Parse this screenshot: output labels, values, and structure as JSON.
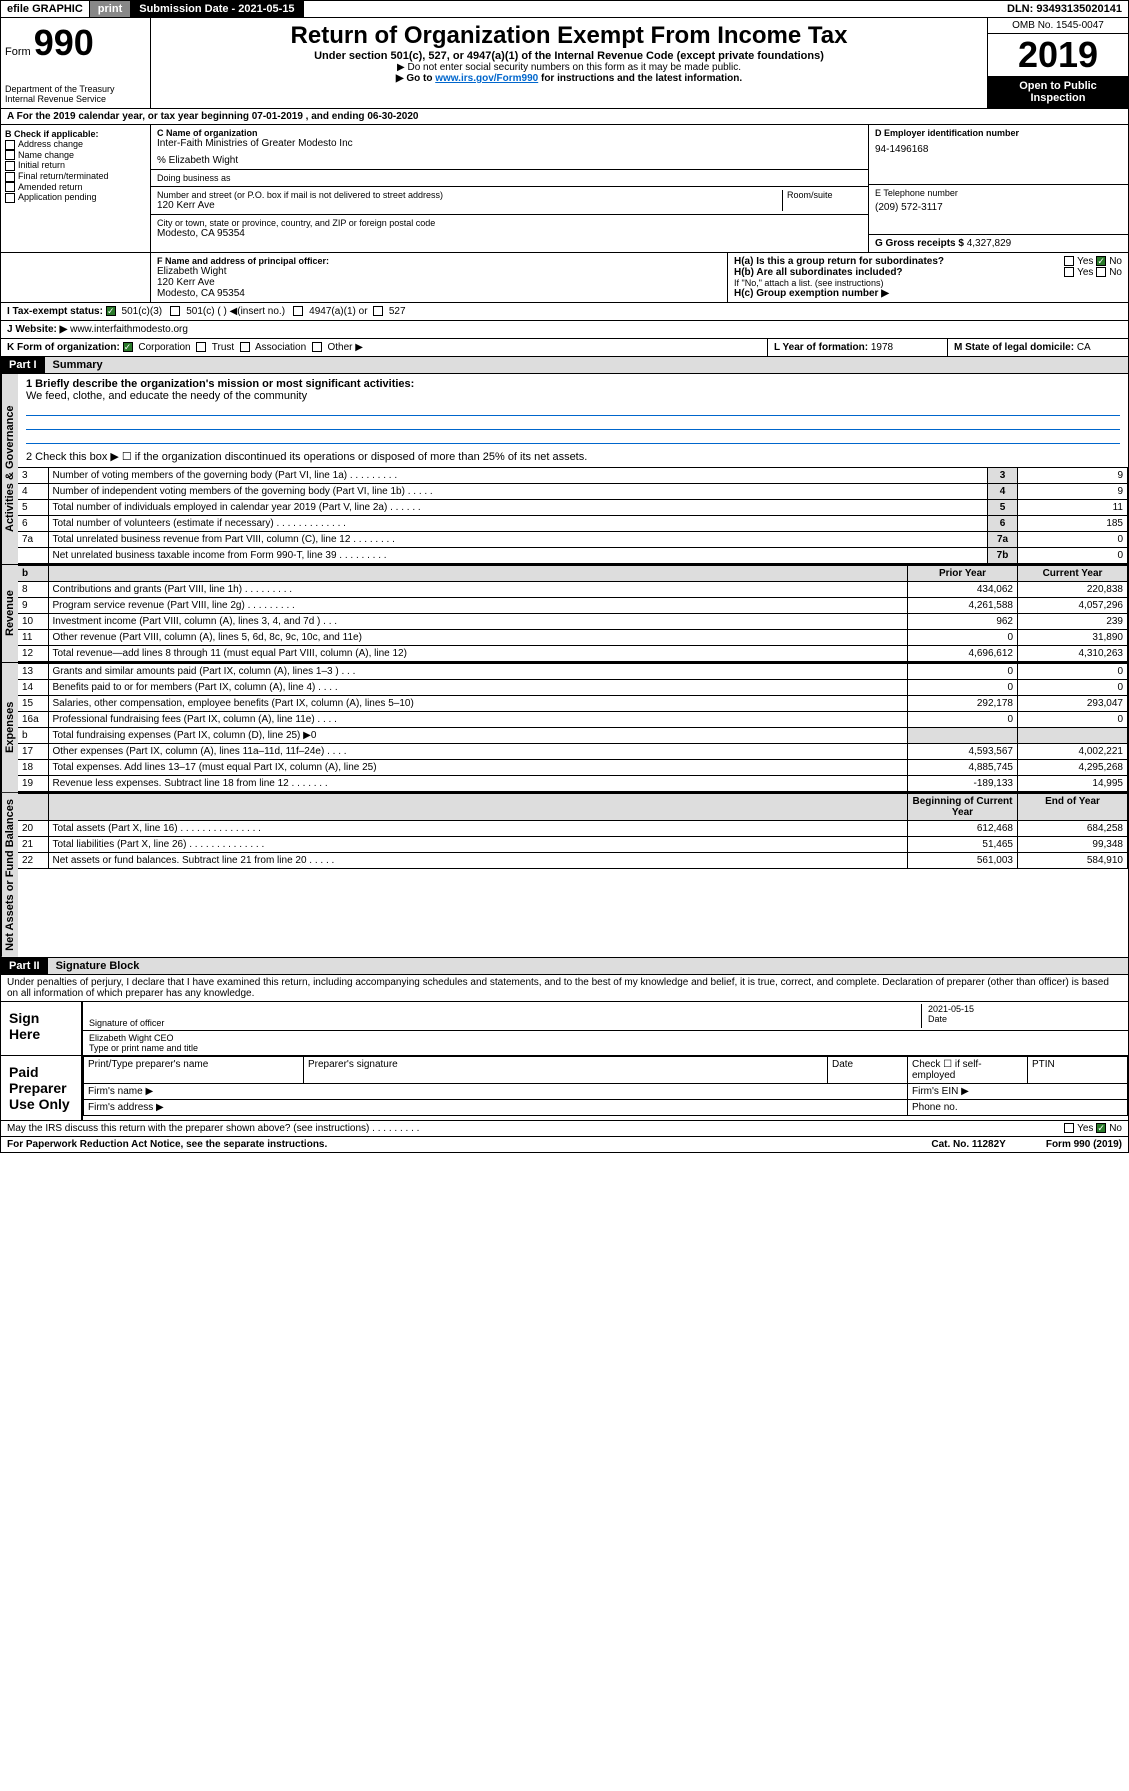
{
  "topbar": {
    "efile": "efile GRAPHIC",
    "print": "print",
    "subdate_label": "Submission Date - ",
    "subdate": "2021-05-15",
    "dln_label": "DLN: ",
    "dln": "93493135020141"
  },
  "header": {
    "form_word": "Form",
    "form_num": "990",
    "dept1": "Department of the Treasury",
    "dept2": "Internal Revenue Service",
    "title": "Return of Organization Exempt From Income Tax",
    "sub1": "Under section 501(c), 527, or 4947(a)(1) of the Internal Revenue Code (except private foundations)",
    "sub2": "▶ Do not enter social security numbers on this form as it may be made public.",
    "sub3a": "▶ Go to ",
    "sub3_link": "www.irs.gov/Form990",
    "sub3b": " for instructions and the latest information.",
    "omb": "OMB No. 1545-0047",
    "year": "2019",
    "open": "Open to Public Inspection"
  },
  "rowA": "A For the 2019 calendar year, or tax year beginning 07-01-2019    , and ending 06-30-2020",
  "boxB": {
    "label": "B Check if applicable:",
    "items": [
      "Address change",
      "Name change",
      "Initial return",
      "Final return/terminated",
      "Amended return",
      "Application pending"
    ]
  },
  "boxC": {
    "label": "C Name of organization",
    "org": "Inter-Faith Ministries of Greater Modesto Inc",
    "care_label": "% Elizabeth Wight",
    "dba_label": "Doing business as",
    "addr_label": "Number and street (or P.O. box if mail is not delivered to street address)",
    "room_label": "Room/suite",
    "addr": "120 Kerr Ave",
    "city_label": "City or town, state or province, country, and ZIP or foreign postal code",
    "city": "Modesto, CA  95354"
  },
  "boxD": {
    "label": "D Employer identification number",
    "val": "94-1496168"
  },
  "boxE": {
    "label": "E Telephone number",
    "val": "(209) 572-3117"
  },
  "boxG": {
    "label": "G Gross receipts $ ",
    "val": "4,327,829"
  },
  "boxF": {
    "label": "F Name and address of principal officer:",
    "name": "Elizabeth Wight",
    "addr": "120 Kerr Ave",
    "city": "Modesto, CA  95354"
  },
  "boxH": {
    "a": "H(a)  Is this a group return for subordinates?",
    "b": "H(b)  Are all subordinates included?",
    "note": "If \"No,\" attach a list. (see instructions)",
    "c": "H(c)  Group exemption number ▶",
    "yes": "Yes",
    "no": "No"
  },
  "rowI": {
    "label": "I    Tax-exempt status:",
    "o1": "501(c)(3)",
    "o2": "501(c) (   ) ◀(insert no.)",
    "o3": "4947(a)(1) or",
    "o4": "527"
  },
  "rowJ": {
    "label": "J    Website: ▶",
    "val": "  www.interfaithmodesto.org"
  },
  "rowK": {
    "label": "K Form of organization:",
    "o1": "Corporation",
    "o2": "Trust",
    "o3": "Association",
    "o4": "Other ▶"
  },
  "rowL": {
    "label": "L Year of formation: ",
    "val": "1978"
  },
  "rowM": {
    "label": "M State of legal domicile: ",
    "val": "CA"
  },
  "part1": {
    "hdr": "Part I",
    "title": "Summary"
  },
  "summary": {
    "l1a": "1  Briefly describe the organization's mission or most significant activities:",
    "l1b": "We feed, clothe, and educate the needy of the community",
    "l2": "2   Check this box ▶ ☐  if the organization discontinued its operations or disposed of more than 25% of its net assets.",
    "rows_gov": [
      {
        "n": "3",
        "t": "Number of voting members of the governing body (Part VI, line 1a)   .    .    .    .    .    .    .    .    .",
        "k": "3",
        "v": "9"
      },
      {
        "n": "4",
        "t": "Number of independent voting members of the governing body (Part VI, line 1b)    .    .    .    .    .",
        "k": "4",
        "v": "9"
      },
      {
        "n": "5",
        "t": "Total number of individuals employed in calendar year 2019 (Part V, line 2a)   .    .    .    .    .    .",
        "k": "5",
        "v": "11"
      },
      {
        "n": "6",
        "t": "Total number of volunteers (estimate if necessary)    .    .    .    .    .    .    .    .    .    .    .    .    .",
        "k": "6",
        "v": "185"
      },
      {
        "n": "7a",
        "t": "Total unrelated business revenue from Part VIII, column (C), line 12    .    .    .    .    .    .    .    .",
        "k": "7a",
        "v": "0"
      },
      {
        "n": "",
        "t": "Net unrelated business taxable income from Form 990-T, line 39    .    .    .    .    .    .    .    .    .",
        "k": "7b",
        "v": "0"
      }
    ],
    "col_hdr": {
      "b": "b",
      "py": "Prior Year",
      "cy": "Current Year"
    },
    "rows_rev": [
      {
        "n": "8",
        "t": "Contributions and grants (Part VIII, line 1h)    .    .    .    .    .    .    .    .    .",
        "py": "434,062",
        "cy": "220,838"
      },
      {
        "n": "9",
        "t": "Program service revenue (Part VIII, line 2g)    .    .    .    .    .    .    .    .    .",
        "py": "4,261,588",
        "cy": "4,057,296"
      },
      {
        "n": "10",
        "t": "Investment income (Part VIII, column (A), lines 3, 4, and 7d )    .    .    .",
        "py": "962",
        "cy": "239"
      },
      {
        "n": "11",
        "t": "Other revenue (Part VIII, column (A), lines 5, 6d, 8c, 9c, 10c, and 11e)",
        "py": "0",
        "cy": "31,890"
      },
      {
        "n": "12",
        "t": "Total revenue—add lines 8 through 11 (must equal Part VIII, column (A), line 12)",
        "py": "4,696,612",
        "cy": "4,310,263"
      }
    ],
    "rows_exp": [
      {
        "n": "13",
        "t": "Grants and similar amounts paid (Part IX, column (A), lines 1–3 )    .    .    .",
        "py": "0",
        "cy": "0"
      },
      {
        "n": "14",
        "t": "Benefits paid to or for members (Part IX, column (A), line 4)    .    .    .    .",
        "py": "0",
        "cy": "0"
      },
      {
        "n": "15",
        "t": "Salaries, other compensation, employee benefits (Part IX, column (A), lines 5–10)",
        "py": "292,178",
        "cy": "293,047"
      },
      {
        "n": "16a",
        "t": "Professional fundraising fees (Part IX, column (A), line 11e)    .    .    .    .",
        "py": "0",
        "cy": "0"
      },
      {
        "n": "b",
        "t": "Total fundraising expenses (Part IX, column (D), line 25) ▶0",
        "py": "",
        "cy": "",
        "shade": true
      },
      {
        "n": "17",
        "t": "Other expenses (Part IX, column (A), lines 11a–11d, 11f–24e)    .    .    .    .",
        "py": "4,593,567",
        "cy": "4,002,221"
      },
      {
        "n": "18",
        "t": "Total expenses. Add lines 13–17 (must equal Part IX, column (A), line 25)",
        "py": "4,885,745",
        "cy": "4,295,268"
      },
      {
        "n": "19",
        "t": "Revenue less expenses. Subtract line 18 from line 12    .    .    .    .    .    .    .",
        "py": "-189,133",
        "cy": "14,995"
      }
    ],
    "na_hdr": {
      "py": "Beginning of Current Year",
      "cy": "End of Year"
    },
    "rows_na": [
      {
        "n": "20",
        "t": "Total assets (Part X, line 16)    .    .    .    .    .    .    .    .    .    .    .    .    .    .    .",
        "py": "612,468",
        "cy": "684,258"
      },
      {
        "n": "21",
        "t": "Total liabilities (Part X, line 26)   .    .    .    .    .    .    .    .    .    .    .    .    .    .",
        "py": "51,465",
        "cy": "99,348"
      },
      {
        "n": "22",
        "t": "Net assets or fund balances. Subtract line 21 from line 20    .    .    .    .    .",
        "py": "561,003",
        "cy": "584,910"
      }
    ]
  },
  "vtabs": {
    "gov": "Activities & Governance",
    "rev": "Revenue",
    "exp": "Expenses",
    "na": "Net Assets or Fund Balances"
  },
  "part2": {
    "hdr": "Part II",
    "title": "Signature Block"
  },
  "sig": {
    "decl": "Under penalties of perjury, I declare that I have examined this return, including accompanying schedules and statements, and to the best of my knowledge and belief, it is true, correct, and complete. Declaration of preparer (other than officer) is based on all information of which preparer has any knowledge.",
    "sign_label": "Sign Here",
    "sig_of": "Signature of officer",
    "date": "2021-05-15",
    "date_label": "Date",
    "name": "Elizabeth Wight  CEO",
    "name_label": "Type or print name and title",
    "paid_label": "Paid Preparer Use Only",
    "prep_name": "Print/Type preparer's name",
    "prep_sig": "Preparer's signature",
    "prep_date": "Date",
    "check_self": "Check ☐ if self-employed",
    "ptin": "PTIN",
    "firm_name": "Firm's name    ▶",
    "firm_ein": "Firm's EIN ▶",
    "firm_addr": "Firm's address ▶",
    "phone": "Phone no."
  },
  "footer": {
    "discuss": "May the IRS discuss this return with the preparer shown above? (see instructions)    .    .    .    .    .    .    .    .    .",
    "yes": "Yes",
    "no": "No",
    "paperwork": "For Paperwork Reduction Act Notice, see the separate instructions.",
    "cat": "Cat. No. 11282Y",
    "formref": "Form 990 (2019)"
  }
}
